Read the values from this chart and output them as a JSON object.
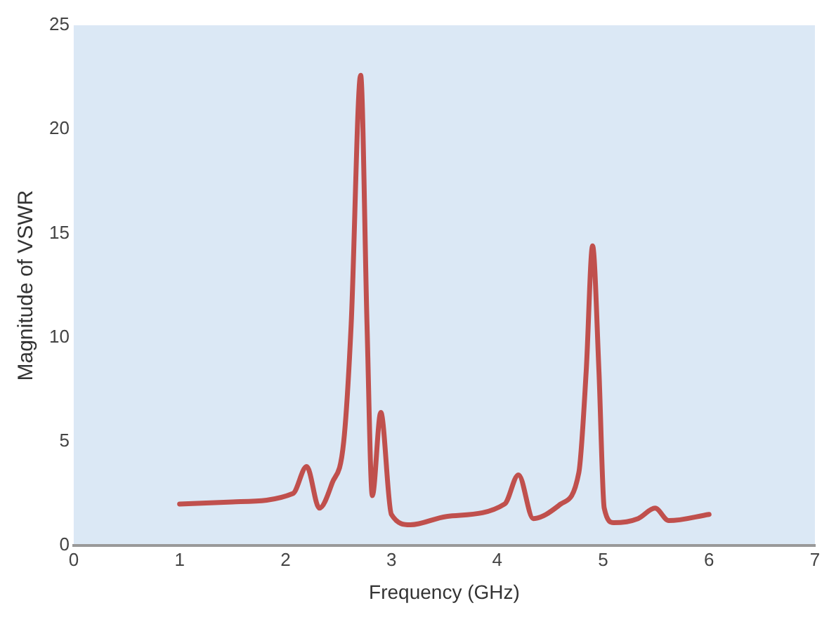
{
  "chart_data": {
    "type": "line",
    "xlabel": "Frequency (GHz)",
    "ylabel": "Magnitude of VSWR",
    "xlim": [
      0,
      7
    ],
    "xticks": [
      0,
      1,
      2,
      3,
      4,
      5,
      6,
      7
    ],
    "ylim": [
      0,
      25
    ],
    "yticks": [
      0,
      5,
      10,
      15,
      20,
      25
    ],
    "grid": false,
    "legend": false,
    "marker": "none",
    "line_style": "solid",
    "series": [
      {
        "color": "#c0504d",
        "x": [
          1.0,
          1.5,
          2.07,
          2.2,
          2.32,
          2.44,
          2.55,
          2.62,
          2.71,
          2.77,
          2.82,
          2.9,
          3.0,
          3.18,
          3.52,
          4.07,
          4.2,
          4.34,
          4.6,
          4.77,
          4.84,
          4.9,
          4.96,
          5.01,
          5.1,
          5.33,
          5.49,
          5.62,
          6.0
        ],
        "values": [
          2.0,
          2.1,
          2.5,
          3.8,
          1.8,
          3.0,
          5.0,
          10.6,
          22.6,
          10.6,
          2.4,
          6.4,
          1.5,
          1.0,
          1.4,
          2.0,
          3.4,
          1.3,
          2.0,
          3.5,
          8.4,
          14.4,
          8.4,
          1.8,
          1.1,
          1.3,
          1.8,
          1.2,
          1.5
        ]
      }
    ]
  }
}
